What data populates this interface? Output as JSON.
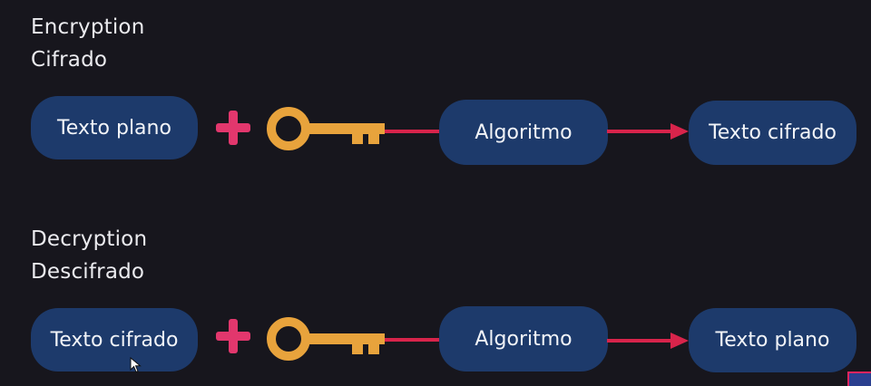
{
  "encryption": {
    "title_en": "Encryption",
    "title_es": "Cifrado",
    "input_label": "Texto plano",
    "algorithm_label": "Algoritmo",
    "output_label": "Texto cifrado"
  },
  "decryption": {
    "title_en": "Decryption",
    "title_es": "Descifrado",
    "input_label": "Texto cifrado",
    "algorithm_label": "Algoritmo",
    "output_label": "Texto plano"
  },
  "colors": {
    "background": "#17161d",
    "pill": "#1d3a6b",
    "plus": "#e2376d",
    "key": "#e8a33c",
    "connector": "#d8244b"
  },
  "icons": [
    "plus-icon",
    "key-icon",
    "arrow-right-icon",
    "mouse-cursor-icon"
  ]
}
